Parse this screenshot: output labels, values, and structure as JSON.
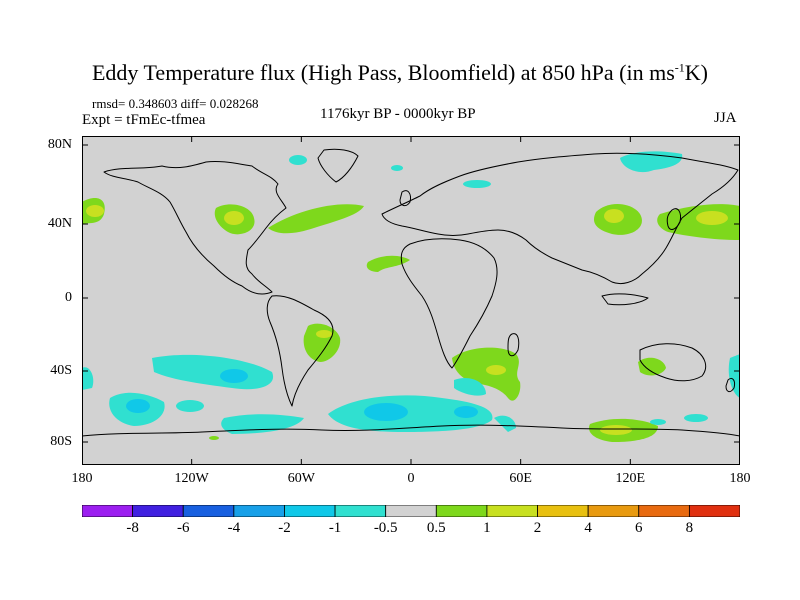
{
  "title": {
    "main": "Eddy Temperature flux (High Pass, Bloomfield) at 850 hPa (in ms",
    "sup": "-1",
    "tail": "K)"
  },
  "stats": "rmsd= 0.348603 diff= 0.028268",
  "experiment": "Expt = tFmEc-tfmea",
  "period": "1176kyr BP - 0000kyr BP",
  "season": "JJA",
  "y_axis_labels": [
    "80N",
    "40N",
    "0",
    "40S",
    "80S"
  ],
  "x_axis_labels": [
    "180",
    "120W",
    "60W",
    "0",
    "60E",
    "120E",
    "180"
  ],
  "colorbar": {
    "labels": [
      "-8",
      "-6",
      "-4",
      "-2",
      "-1",
      "-0.5",
      "0.5",
      "1",
      "2",
      "4",
      "6",
      "8"
    ],
    "colors": [
      "#9c1ff0",
      "#4020e0",
      "#1860e0",
      "#18a0e8",
      "#10c8e8",
      "#30e0d0",
      "#d2d2d2",
      "#7ed81c",
      "#c8e020",
      "#e8c010",
      "#e89a10",
      "#e86a10",
      "#e03010"
    ]
  },
  "chart_data": {
    "type": "heatmap",
    "variable": "Eddy Temperature flux (High Pass, Bloomfield) at 850 hPa",
    "units": "ms-1K",
    "x_range": [
      -180,
      180
    ],
    "y_range": [
      -90,
      90
    ],
    "contour_levels": [
      -8,
      -6,
      -4,
      -2,
      -1,
      -0.5,
      0.5,
      1,
      2,
      4,
      6,
      8
    ],
    "regions": [
      {
        "lon": -175,
        "lat": 46,
        "value": 1.5
      },
      {
        "lon": -95,
        "lat": 42,
        "value": 1.5
      },
      {
        "lon": -45,
        "lat": 44,
        "value": 1
      },
      {
        "lon": -10,
        "lat": 18,
        "value": 1
      },
      {
        "lon": 150,
        "lat": 40,
        "value": 1.5
      },
      {
        "lon": 130,
        "lat": 44,
        "value": 1.5
      },
      {
        "lon": -55,
        "lat": -25,
        "value": 1.5
      },
      {
        "lon": 45,
        "lat": -38,
        "value": 1.5
      },
      {
        "lon": 140,
        "lat": -35,
        "value": 1
      },
      {
        "lon": 120,
        "lat": -78,
        "value": 1.5
      },
      {
        "lon": 120,
        "lat": 68,
        "value": -0.8
      },
      {
        "lon": -65,
        "lat": 72,
        "value": -0.8
      },
      {
        "lon": -140,
        "lat": -42,
        "value": -1.5
      },
      {
        "lon": -150,
        "lat": -65,
        "value": -1.5
      },
      {
        "lon": -20,
        "lat": -66,
        "value": -1.5
      },
      {
        "lon": -70,
        "lat": -74,
        "value": -0.8
      },
      {
        "lon": 40,
        "lat": -44,
        "value": -0.8
      },
      {
        "lon": 178,
        "lat": -40,
        "value": -1.5
      }
    ]
  }
}
